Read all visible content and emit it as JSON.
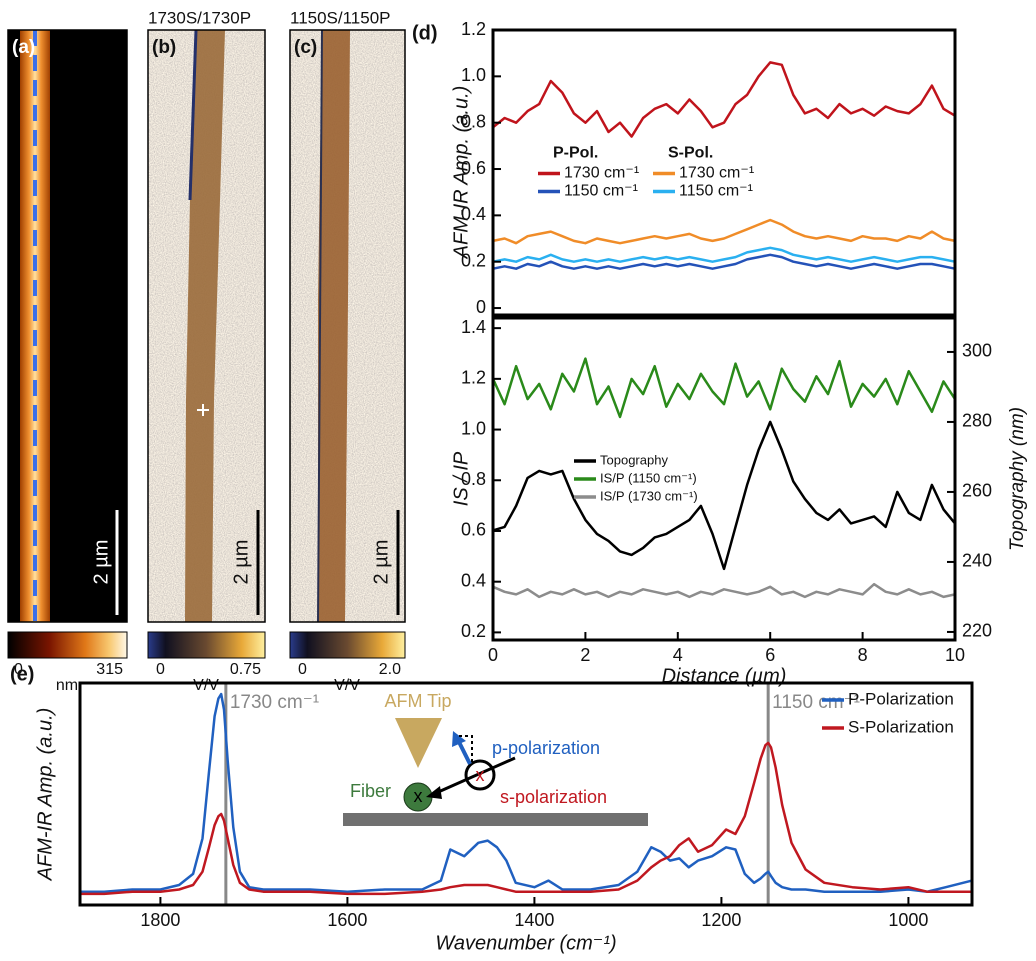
{
  "images": [
    {
      "label": "(a)",
      "scale_bar": "2 µm",
      "colorbar_min": "0",
      "colorbar_max": "315",
      "colorbar_unit": "nm"
    },
    {
      "label": "(b)",
      "title": "1730S/1730P",
      "scale_bar": "2 µm",
      "colorbar_min": "0",
      "colorbar_max": "0.75",
      "colorbar_unit": "V/V"
    },
    {
      "label": "(c)",
      "title": "1150S/1150P",
      "scale_bar": "2 µm",
      "colorbar_min": "0",
      "colorbar_max": "2.0",
      "colorbar_unit": "V/V"
    }
  ],
  "chart_data": [
    {
      "type": "line",
      "panel_label": "(d)",
      "ylabel": "AFM-IR Amp. (a.u.)",
      "x": [
        0,
        0.25,
        0.5,
        0.75,
        1,
        1.25,
        1.5,
        1.75,
        2,
        2.25,
        2.5,
        2.75,
        3,
        3.25,
        3.5,
        3.75,
        4,
        4.25,
        4.5,
        4.75,
        5,
        5.25,
        5.5,
        5.75,
        6,
        6.25,
        6.5,
        6.75,
        7,
        7.25,
        7.5,
        7.75,
        8,
        8.25,
        8.5,
        8.75,
        9,
        9.25,
        9.5,
        9.75,
        10
      ],
      "xlim": [
        0,
        10
      ],
      "ylim": [
        -0.03,
        1.2
      ],
      "yticks": [
        0,
        0.2,
        0.4,
        0.6,
        0.8,
        {
          "value": 1,
          "label": "1.0"
        },
        1.2
      ],
      "legend": "center left",
      "legend_headers": [
        "P-Pol.",
        "S-Pol."
      ],
      "series": [
        {
          "name": "1730 cm⁻¹",
          "color": "#c0141c",
          "values": [
            0.78,
            0.82,
            0.8,
            0.85,
            0.88,
            0.98,
            0.93,
            0.84,
            0.8,
            0.85,
            0.76,
            0.8,
            0.74,
            0.82,
            0.86,
            0.88,
            0.84,
            0.9,
            0.85,
            0.78,
            0.8,
            0.88,
            0.92,
            1.0,
            1.06,
            1.05,
            0.92,
            0.84,
            0.86,
            0.82,
            0.88,
            0.84,
            0.86,
            0.83,
            0.87,
            0.85,
            0.84,
            0.88,
            0.96,
            0.86,
            0.83
          ]
        },
        {
          "name": "1150 cm⁻¹",
          "color": "#2452b8",
          "values": [
            0.17,
            0.18,
            0.17,
            0.19,
            0.18,
            0.2,
            0.18,
            0.17,
            0.18,
            0.17,
            0.18,
            0.17,
            0.18,
            0.19,
            0.18,
            0.19,
            0.18,
            0.19,
            0.18,
            0.17,
            0.18,
            0.19,
            0.21,
            0.22,
            0.23,
            0.22,
            0.2,
            0.19,
            0.18,
            0.19,
            0.18,
            0.17,
            0.18,
            0.19,
            0.18,
            0.17,
            0.18,
            0.19,
            0.19,
            0.18,
            0.17
          ]
        },
        {
          "name": "1730 cm⁻¹",
          "color": "#f08c28",
          "values": [
            0.29,
            0.3,
            0.28,
            0.31,
            0.32,
            0.33,
            0.31,
            0.29,
            0.28,
            0.3,
            0.29,
            0.28,
            0.29,
            0.3,
            0.31,
            0.3,
            0.31,
            0.32,
            0.3,
            0.29,
            0.3,
            0.32,
            0.34,
            0.36,
            0.38,
            0.36,
            0.33,
            0.31,
            0.3,
            0.31,
            0.3,
            0.29,
            0.31,
            0.3,
            0.3,
            0.29,
            0.31,
            0.3,
            0.33,
            0.3,
            0.29
          ]
        },
        {
          "name": "1150 cm⁻¹",
          "color": "#2ab0f0",
          "values": [
            0.2,
            0.21,
            0.2,
            0.22,
            0.21,
            0.23,
            0.21,
            0.2,
            0.21,
            0.2,
            0.21,
            0.2,
            0.21,
            0.22,
            0.21,
            0.22,
            0.21,
            0.22,
            0.21,
            0.2,
            0.21,
            0.22,
            0.24,
            0.25,
            0.26,
            0.25,
            0.23,
            0.22,
            0.21,
            0.22,
            0.21,
            0.2,
            0.21,
            0.22,
            0.21,
            0.2,
            0.21,
            0.22,
            0.22,
            0.21,
            0.2
          ]
        }
      ]
    },
    {
      "type": "line",
      "xlabel": "Distance (µm)",
      "ylabel": "IS / IP",
      "y2label": "Topography (nm)",
      "x": [
        0,
        0.25,
        0.5,
        0.75,
        1,
        1.25,
        1.5,
        1.75,
        2,
        2.25,
        2.5,
        2.75,
        3,
        3.25,
        3.5,
        3.75,
        4,
        4.25,
        4.5,
        4.75,
        5,
        5.25,
        5.5,
        5.75,
        6,
        6.25,
        6.5,
        6.75,
        7,
        7.25,
        7.5,
        7.75,
        8,
        8.25,
        8.5,
        8.75,
        9,
        9.25,
        9.5,
        9.75,
        10
      ],
      "xlim": [
        0,
        10
      ],
      "xticks": [
        0,
        2,
        4,
        6,
        8,
        10
      ],
      "ylim": [
        0.17,
        1.44
      ],
      "yticks": [
        0.2,
        0.4,
        0.6,
        0.8,
        {
          "value": 1,
          "label": "1.0"
        },
        1.2,
        1.4
      ],
      "y2lim": [
        217.7,
        309.7
      ],
      "y2ticks": [
        220,
        240,
        260,
        280,
        300
      ],
      "legend": "center",
      "series": [
        {
          "name": "Topography",
          "color": "#000000",
          "axis": "y2",
          "values": [
            249,
            250,
            256,
            264,
            266,
            265,
            266,
            258,
            252,
            248,
            246,
            243,
            242,
            244,
            247,
            248,
            250,
            252,
            256,
            248,
            238,
            250,
            262,
            272,
            280,
            272,
            263,
            258,
            254,
            252,
            255,
            251,
            252,
            253,
            250,
            260,
            254,
            252,
            262,
            255,
            251
          ]
        },
        {
          "name": "IS/P (1150 cm⁻¹)",
          "color": "#2a8a1a",
          "values": [
            1.2,
            1.1,
            1.25,
            1.12,
            1.18,
            1.08,
            1.22,
            1.15,
            1.28,
            1.1,
            1.17,
            1.05,
            1.2,
            1.14,
            1.25,
            1.09,
            1.18,
            1.12,
            1.22,
            1.15,
            1.1,
            1.26,
            1.13,
            1.19,
            1.08,
            1.24,
            1.16,
            1.11,
            1.21,
            1.14,
            1.27,
            1.09,
            1.18,
            1.13,
            1.2,
            1.1,
            1.23,
            1.15,
            1.07,
            1.19,
            1.12
          ]
        },
        {
          "name": "IS/P (1730 cm⁻¹)",
          "color": "#8c8c8c",
          "values": [
            0.38,
            0.36,
            0.35,
            0.37,
            0.34,
            0.36,
            0.35,
            0.37,
            0.35,
            0.36,
            0.34,
            0.36,
            0.35,
            0.37,
            0.36,
            0.35,
            0.36,
            0.34,
            0.36,
            0.35,
            0.37,
            0.36,
            0.35,
            0.36,
            0.38,
            0.35,
            0.36,
            0.34,
            0.36,
            0.35,
            0.37,
            0.36,
            0.35,
            0.39,
            0.36,
            0.35,
            0.37,
            0.35,
            0.36,
            0.34,
            0.35
          ]
        }
      ]
    },
    {
      "type": "line",
      "panel_label": "(e)",
      "xlabel": "Wavenumber (cm⁻¹)",
      "ylabel": "AFM-IR Amp. (a.u.)",
      "x": [
        1886,
        1860,
        1830,
        1800,
        1780,
        1765,
        1755,
        1748,
        1742,
        1738,
        1735,
        1732,
        1728,
        1722,
        1715,
        1705,
        1690,
        1670,
        1640,
        1600,
        1560,
        1520,
        1500,
        1490,
        1475,
        1460,
        1450,
        1440,
        1430,
        1420,
        1400,
        1385,
        1370,
        1340,
        1310,
        1290,
        1275,
        1265,
        1255,
        1245,
        1235,
        1225,
        1210,
        1195,
        1185,
        1175,
        1165,
        1158,
        1153,
        1150,
        1147,
        1142,
        1135,
        1125,
        1110,
        1090,
        1060,
        1030,
        1000,
        980,
        960,
        932
      ],
      "xlim": [
        1886,
        932
      ],
      "xticks": [
        1800,
        1600,
        1400,
        1200,
        1000
      ],
      "ylim": [
        0,
        1
      ],
      "legend": "upper right",
      "annotations": [
        {
          "x": 1730,
          "label": "1730 cm⁻¹"
        },
        {
          "x": 1150,
          "label": "1150 cm⁻¹"
        }
      ],
      "inset_labels": [
        "AFM Tip",
        "p-polarization",
        "Fiber",
        "x",
        "x",
        "s-polarization"
      ],
      "series": [
        {
          "name": "P-Polarization",
          "color": "#2060c0",
          "values": [
            0.06,
            0.06,
            0.07,
            0.07,
            0.09,
            0.14,
            0.3,
            0.6,
            0.85,
            0.93,
            0.95,
            0.88,
            0.65,
            0.35,
            0.15,
            0.08,
            0.07,
            0.07,
            0.07,
            0.06,
            0.07,
            0.07,
            0.11,
            0.25,
            0.22,
            0.28,
            0.29,
            0.26,
            0.2,
            0.1,
            0.08,
            0.11,
            0.07,
            0.07,
            0.09,
            0.15,
            0.26,
            0.24,
            0.2,
            0.21,
            0.17,
            0.2,
            0.22,
            0.26,
            0.25,
            0.14,
            0.1,
            0.12,
            0.14,
            0.15,
            0.13,
            0.1,
            0.08,
            0.07,
            0.07,
            0.06,
            0.06,
            0.06,
            0.07,
            0.06,
            0.08,
            0.11
          ]
        },
        {
          "name": "S-Polarization",
          "color": "#c01820",
          "values": [
            0.05,
            0.05,
            0.06,
            0.06,
            0.07,
            0.09,
            0.15,
            0.26,
            0.36,
            0.4,
            0.41,
            0.38,
            0.3,
            0.18,
            0.1,
            0.07,
            0.06,
            0.06,
            0.06,
            0.05,
            0.05,
            0.06,
            0.07,
            0.08,
            0.09,
            0.09,
            0.09,
            0.08,
            0.07,
            0.06,
            0.06,
            0.06,
            0.06,
            0.06,
            0.07,
            0.11,
            0.17,
            0.2,
            0.22,
            0.27,
            0.3,
            0.24,
            0.27,
            0.34,
            0.32,
            0.4,
            0.55,
            0.66,
            0.72,
            0.73,
            0.71,
            0.62,
            0.45,
            0.28,
            0.16,
            0.1,
            0.08,
            0.07,
            0.08,
            0.06,
            0.06,
            0.06
          ]
        }
      ]
    }
  ]
}
